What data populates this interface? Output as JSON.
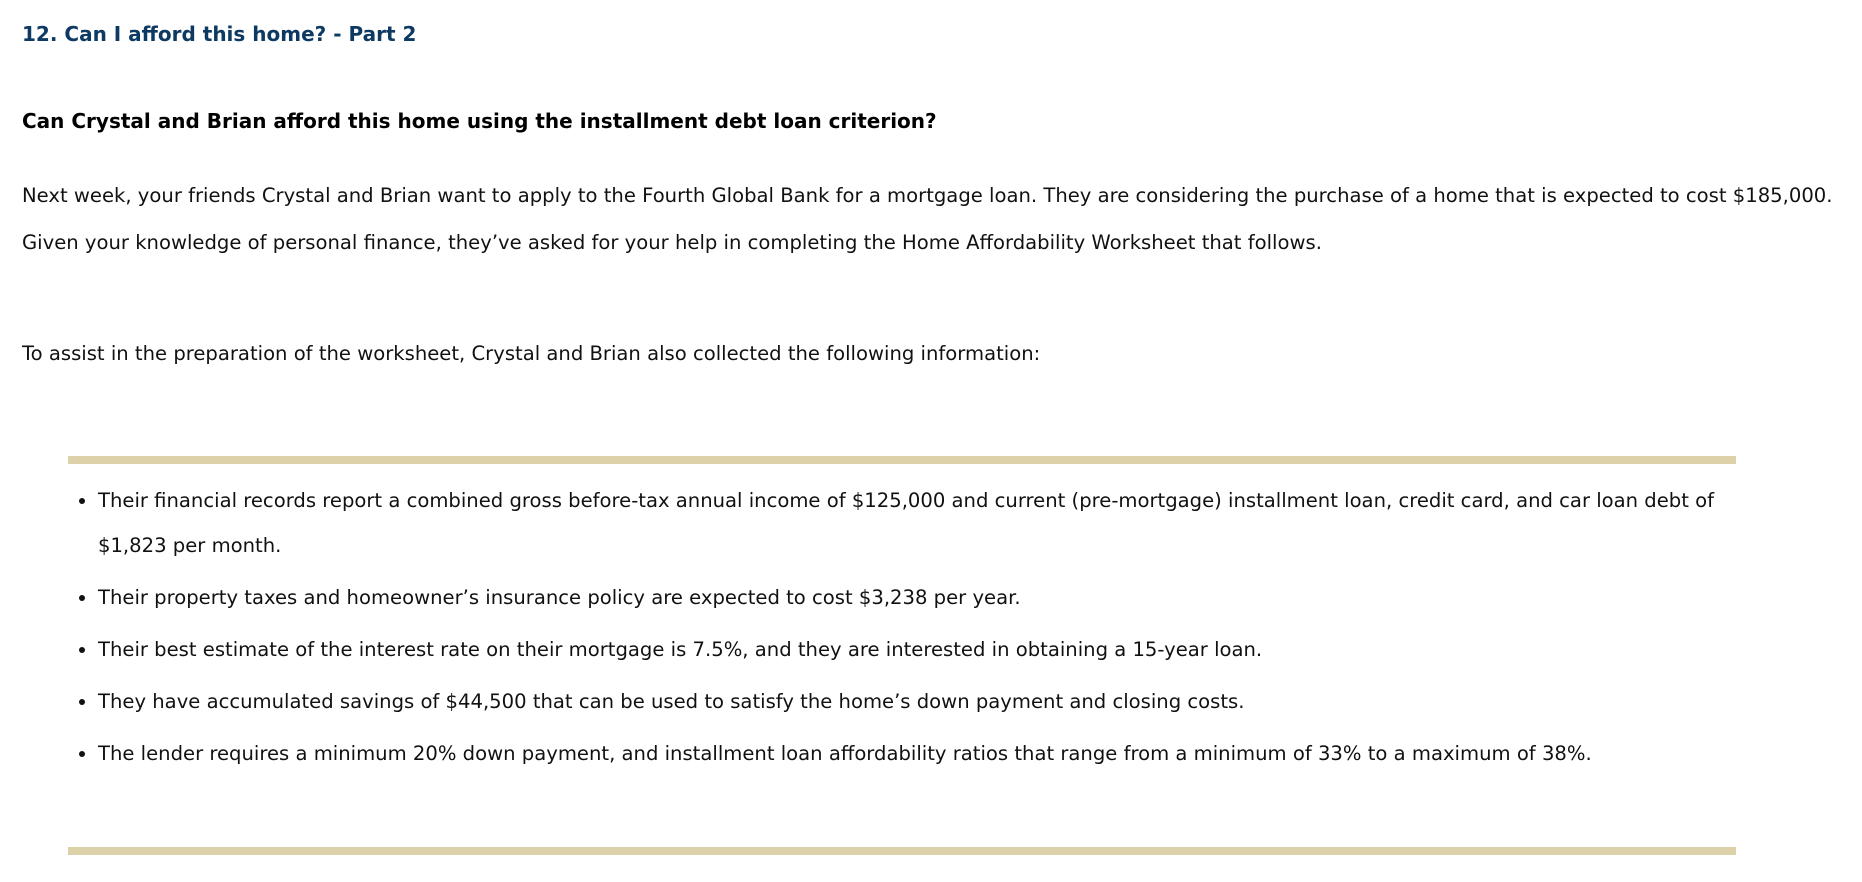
{
  "title": "12. Can I afford this home? - Part 2",
  "question": "Can Crystal and Brian afford this home using the installment debt loan criterion?",
  "intro": "Next week, your friends Crystal and Brian want to apply to the Fourth Global Bank for a mortgage loan. They are considering the purchase of a home that is expected to cost $185,000. Given your knowledge of personal finance, they’ve asked for your help in completing the Home Affordability Worksheet that follows.",
  "assist": "To assist in the preparation of the worksheet, Crystal and Brian also collected the following information:",
  "info": [
    "Their financial records report a combined gross before-tax annual income of $125,000 and current (pre-mortgage) installment loan, credit card, and car loan debt of $1,823 per month.",
    "Their property taxes and homeowner’s insurance policy are expected to cost $3,238 per year.",
    "Their best estimate of the interest rate on their mortgage is 7.5%, and they are interested in obtaining a 15-year loan.",
    "They have accumulated savings of $44,500 that can be used to satisfy the home’s down payment and closing costs.",
    "The lender requires a minimum 20% down payment, and installment loan affordability ratios that range from a minimum of 33% to a maximum of 38%."
  ],
  "colors": {
    "title": "#0d3a63",
    "rule": "#dcd1a8"
  }
}
